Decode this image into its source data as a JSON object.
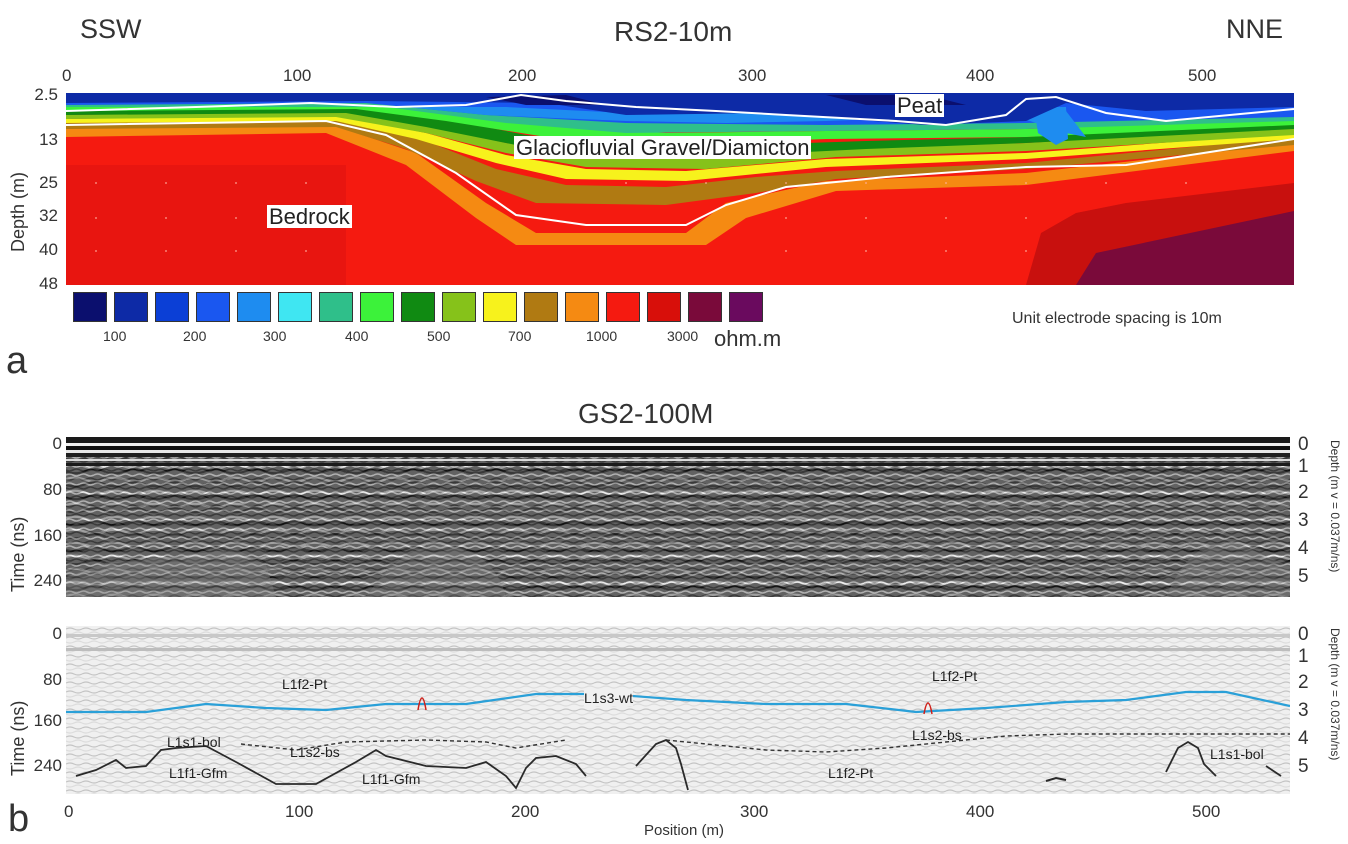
{
  "panel_a": {
    "panel_label": "a",
    "title": "RS2-10m",
    "left_direction": "SSW",
    "right_direction": "NNE",
    "y_axis_label": "Depth (m)",
    "x_ticks": [
      "0",
      "100",
      "200",
      "300",
      "400",
      "500"
    ],
    "depth_ticks": [
      "2.5",
      "13",
      "25",
      "32",
      "40",
      "48"
    ],
    "labels": {
      "peat": "Peat",
      "gravel": "Glaciofluvial Gravel/Diamicton",
      "bedrock": "Bedrock"
    },
    "legend": {
      "colors": [
        "#0b0f6e",
        "#0d2aa6",
        "#0b3fd6",
        "#1a57f0",
        "#1e8cf0",
        "#3fe6f2",
        "#2fbf8a",
        "#3cf23a",
        "#108a12",
        "#86c21a",
        "#f7f21c",
        "#b07a12",
        "#f58a12",
        "#f51a10",
        "#d80f0a",
        "#7a0a3a",
        "#6a0a5e"
      ],
      "labels": [
        "100",
        "200",
        "300",
        "400",
        "500",
        "700",
        "1000",
        "3000"
      ],
      "unit": "ohm.m"
    },
    "note": "Unit electrode spacing is 10m"
  },
  "panel_b": {
    "panel_label": "b",
    "title": "GS2-100M",
    "y_axis_label": "Time (ns)",
    "right_axis_label": "Depth (m v = 0.037m/ns)",
    "time_ticks": [
      "0",
      "80",
      "160",
      "240"
    ],
    "depth_ticks": [
      "0",
      "1",
      "2",
      "3",
      "4",
      "5"
    ],
    "x_ticks": [
      "0",
      "100",
      "200",
      "300",
      "400",
      "500"
    ],
    "x_axis_label": "Position (m)",
    "interpretation_labels": {
      "l1f2_pt_a": "L1f2-Pt",
      "l1f2_pt_b": "L1f2-Pt",
      "l1f2_pt_c": "L1f2-Pt",
      "l1s3_wt": "L1s3-wt",
      "l1s1_bol_a": "L1s1-bol",
      "l1s1_bol_b": "L1s1-bol",
      "l1s2_bs_a": "L1s2-bs",
      "l1s2_bs_b": "L1s2-bs",
      "l1f1_gfm_a": "L1f1-Gfm",
      "l1f1_gfm_b": "L1f1-Gfm"
    },
    "water_table_color": "#2aa0d8"
  }
}
